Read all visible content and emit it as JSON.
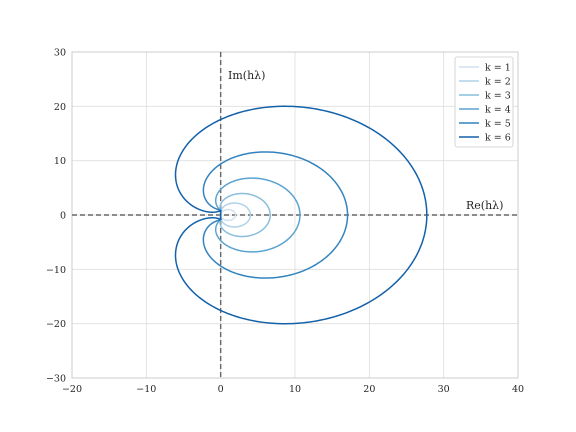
{
  "chart_data": {
    "type": "line",
    "xlim": [
      -20,
      40
    ],
    "ylim": [
      -30,
      30
    ],
    "x_ticks": [
      -20,
      -10,
      0,
      10,
      20,
      30,
      40
    ],
    "y_ticks": [
      -30,
      -20,
      -10,
      0,
      10,
      20,
      30
    ],
    "x_tick_labels": [
      "−20",
      "−10",
      "0",
      "10",
      "20",
      "30",
      "40"
    ],
    "y_tick_labels": [
      "−30",
      "−20",
      "−10",
      "0",
      "10",
      "20",
      "30"
    ],
    "grid": true,
    "legend_position": "top-right",
    "re_axis_label": "Re(hλ)",
    "im_axis_label": "Im(hλ)",
    "series": [
      {
        "name": "k = 1",
        "k": 1,
        "color": "#d0e1f2"
      },
      {
        "name": "k = 2",
        "k": 2,
        "color": "#b0d2e8"
      },
      {
        "name": "k = 3",
        "k": 3,
        "color": "#89bedc"
      },
      {
        "name": "k = 4",
        "k": 4,
        "color": "#5ba3d0"
      },
      {
        "name": "k = 5",
        "k": 5,
        "color": "#3383be"
      },
      {
        "name": "k = 6",
        "k": 6,
        "color": "#1361a9"
      }
    ]
  }
}
